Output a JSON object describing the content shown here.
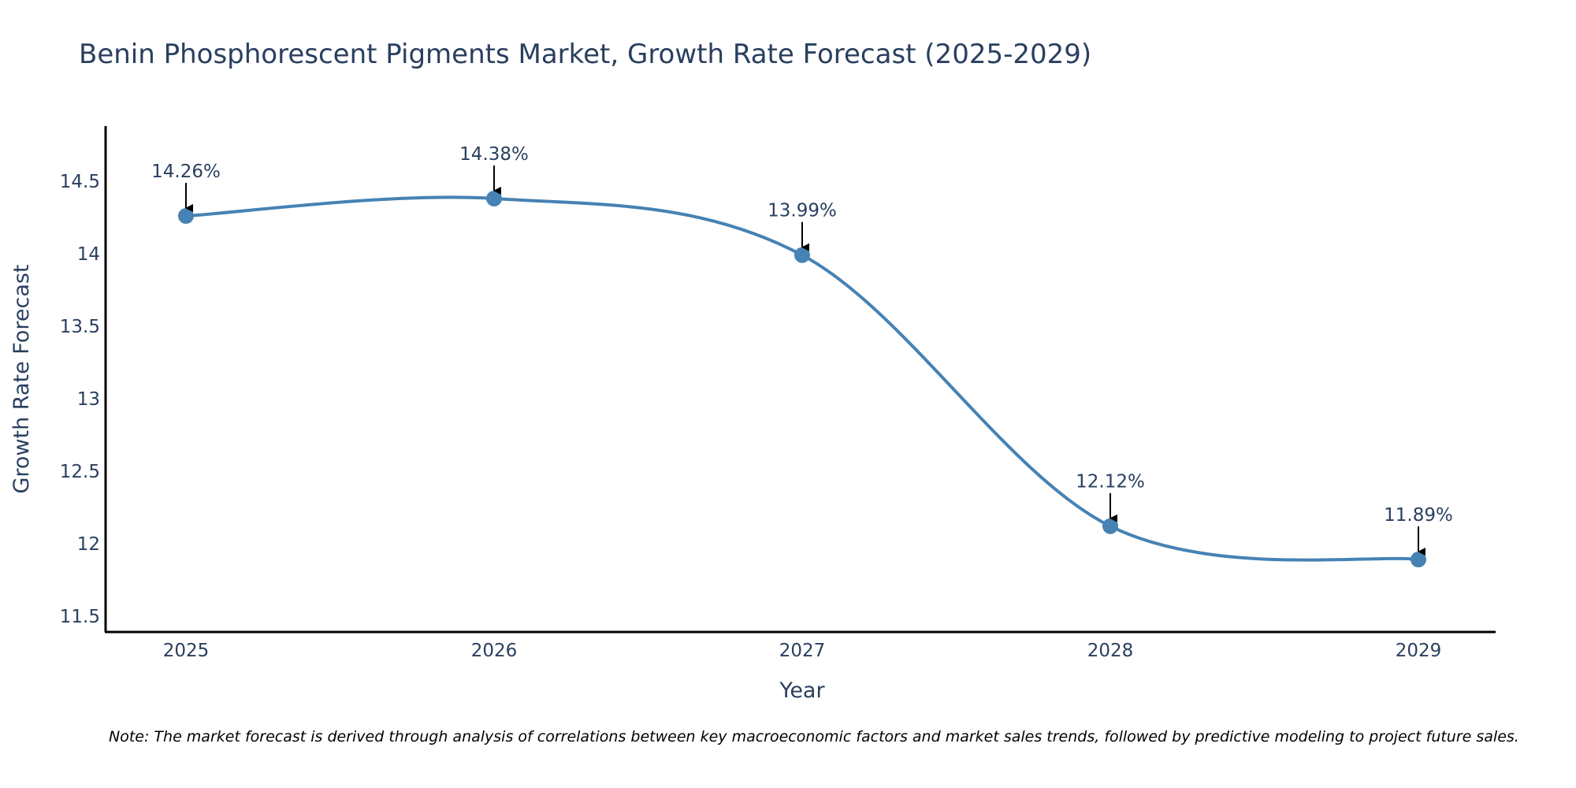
{
  "chart_data": {
    "type": "line",
    "title": "Benin Phosphorescent Pigments Market, Growth Rate Forecast (2025-2029)",
    "xlabel": "Year",
    "ylabel": "Growth Rate Forecast",
    "categories": [
      "2025",
      "2026",
      "2027",
      "2028",
      "2029"
    ],
    "series": [
      {
        "name": "Growth Rate Forecast",
        "values": [
          14.26,
          14.38,
          13.99,
          12.12,
          11.89
        ],
        "labels": [
          "14.26%",
          "14.38%",
          "13.99%",
          "12.12%",
          "11.89%"
        ]
      }
    ],
    "ylim": [
      11.39,
      14.88
    ],
    "yticks": [
      11.5,
      12,
      12.5,
      13,
      13.5,
      14,
      14.5
    ],
    "ytick_labels": [
      "11.5",
      "12",
      "12.5",
      "13",
      "13.5",
      "14",
      "14.5"
    ],
    "grid": false,
    "line_shape": "spline",
    "colors": {
      "line": "#4682b4",
      "marker": "#4682b4",
      "arrow": "#000000",
      "axis": "#000000"
    },
    "note": "Note: The market forecast is derived through analysis of correlations between key macroeconomic factors and market sales trends, followed by predictive modeling to project future sales."
  }
}
